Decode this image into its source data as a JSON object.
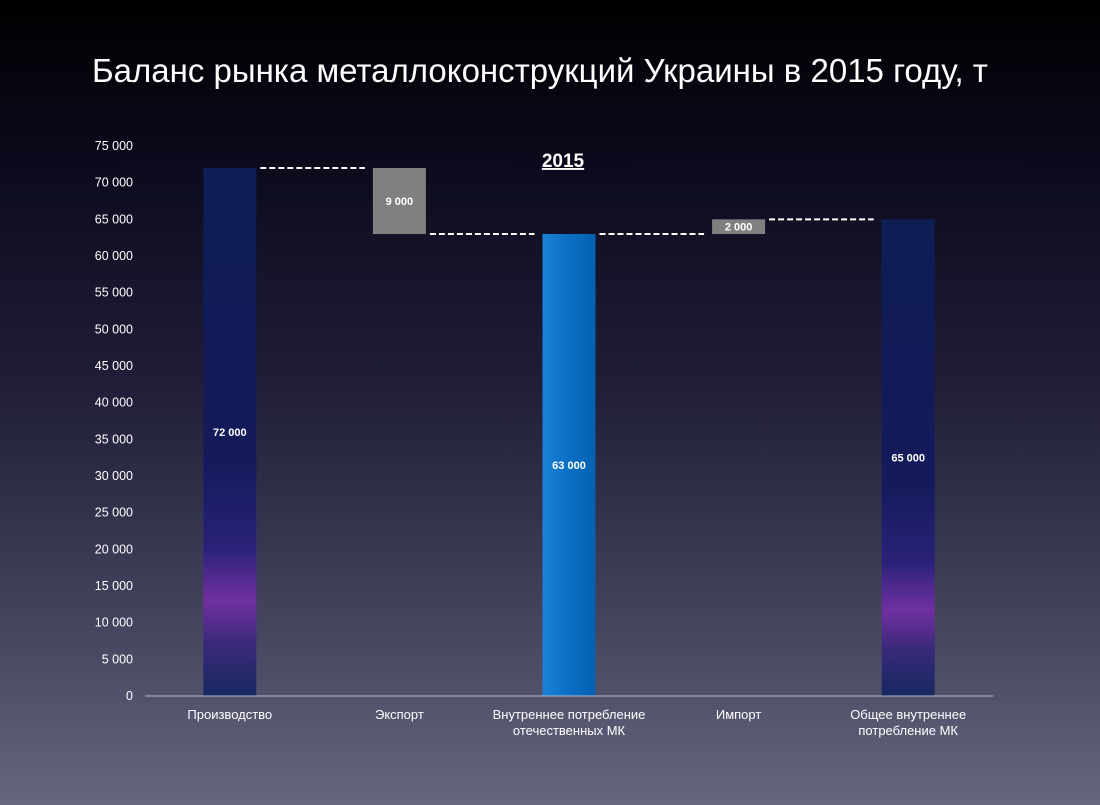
{
  "title": "Баланс рынка металлоконструкций Украины в 2015 году, т",
  "chart_data": {
    "type": "waterfall",
    "title": "Баланс рынка металлоконструкций Украины в 2015 году, т",
    "annotation": "2015",
    "ylim": [
      0,
      75000
    ],
    "ytick_step": 5000,
    "ytick_labels": [
      "0",
      "5 000",
      "10 000",
      "15 000",
      "20 000",
      "25 000",
      "30 000",
      "35 000",
      "40 000",
      "45 000",
      "50 000",
      "55 000",
      "60 000",
      "65 000",
      "70 000",
      "75 000"
    ],
    "grid": false,
    "categories": [
      [
        "Производство"
      ],
      [
        "Экспорт"
      ],
      [
        "Внутреннее потребление",
        "отечественных МК"
      ],
      [
        "Импорт"
      ],
      [
        "Общее внутреннее",
        "потребление МК"
      ]
    ],
    "bars": [
      {
        "kind": "total",
        "start": 0,
        "end": 72000,
        "value": 72000,
        "label": "72 000"
      },
      {
        "kind": "decrease",
        "start": 63000,
        "end": 72000,
        "value": 9000,
        "label": "9 000"
      },
      {
        "kind": "total",
        "start": 0,
        "end": 63000,
        "value": 63000,
        "label": "63 000"
      },
      {
        "kind": "increase",
        "start": 63000,
        "end": 65000,
        "value": 2000,
        "label": "2 000"
      },
      {
        "kind": "total",
        "start": 0,
        "end": 65000,
        "value": 65000,
        "label": "65 000"
      }
    ],
    "colors": {
      "total_dark": "#0f1a50",
      "total_purple": "#7030a0",
      "total_blue": "#0070c0",
      "change": "#808080",
      "connector": "#ffffff"
    }
  }
}
